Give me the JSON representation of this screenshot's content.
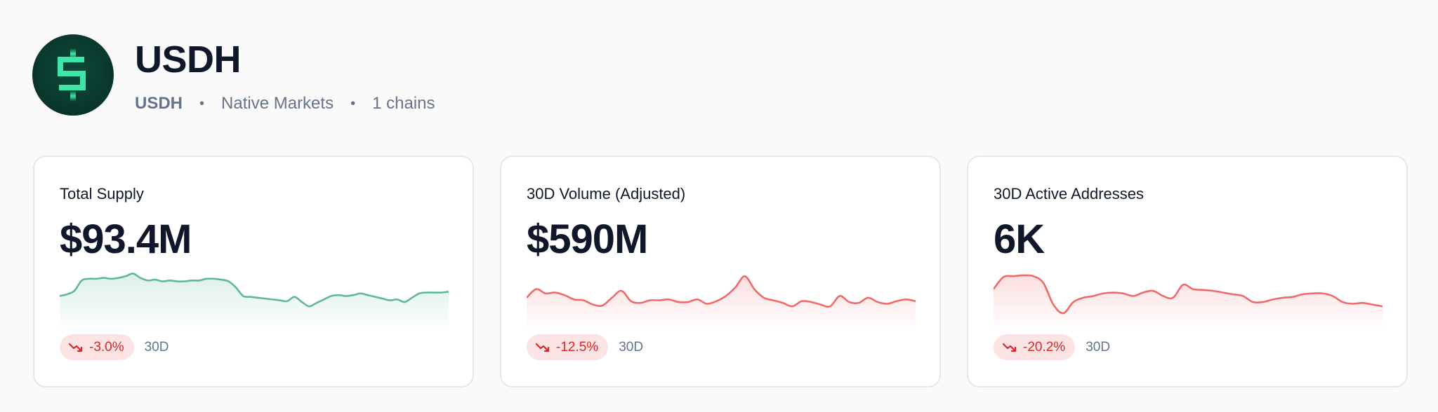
{
  "asset": {
    "name": "USDH",
    "symbol": "USDH",
    "issuer": "Native Markets",
    "chains": "1 chains",
    "logo_icon": "dollar-sign-icon",
    "brand_color": "#3ee6a8"
  },
  "cards": [
    {
      "label": "Total Supply",
      "value": "$93.4M",
      "change": "-3.0%",
      "period": "30D",
      "trend": "down",
      "line_color": "#5fb995",
      "sparkline": [
        28,
        26,
        22,
        10,
        8,
        8,
        7,
        8,
        7,
        5,
        2,
        7,
        10,
        9,
        11,
        10,
        11,
        11,
        10,
        10,
        8,
        8,
        9,
        11,
        18,
        28,
        29,
        30,
        31,
        32,
        33,
        34,
        29,
        35,
        40,
        36,
        32,
        28,
        27,
        28,
        27,
        25,
        27,
        29,
        31,
        33,
        32,
        35,
        30,
        25,
        24,
        24,
        24,
        23
      ]
    },
    {
      "label": "30D Volume (Adjusted)",
      "value": "$590M",
      "change": "-12.5%",
      "period": "30D",
      "trend": "down",
      "line_color": "#ef6b6b",
      "sparkline": [
        30,
        20,
        25,
        24,
        27,
        32,
        33,
        38,
        39,
        30,
        22,
        34,
        36,
        33,
        33,
        32,
        35,
        35,
        32,
        37,
        34,
        28,
        18,
        5,
        20,
        30,
        33,
        36,
        40,
        34,
        35,
        38,
        40,
        28,
        35,
        36,
        30,
        35,
        37,
        34,
        32,
        34
      ]
    },
    {
      "label": "30D Active Addresses",
      "value": "6K",
      "change": "-20.2%",
      "period": "30D",
      "trend": "down",
      "line_color": "#ef6b6b",
      "sparkline": [
        20,
        6,
        5,
        4,
        5,
        13,
        38,
        48,
        35,
        30,
        28,
        25,
        24,
        25,
        28,
        24,
        22,
        28,
        30,
        15,
        20,
        21,
        22,
        24,
        26,
        28,
        35,
        35,
        32,
        30,
        29,
        26,
        25,
        25,
        28,
        35,
        37,
        36,
        38,
        40
      ]
    }
  ]
}
